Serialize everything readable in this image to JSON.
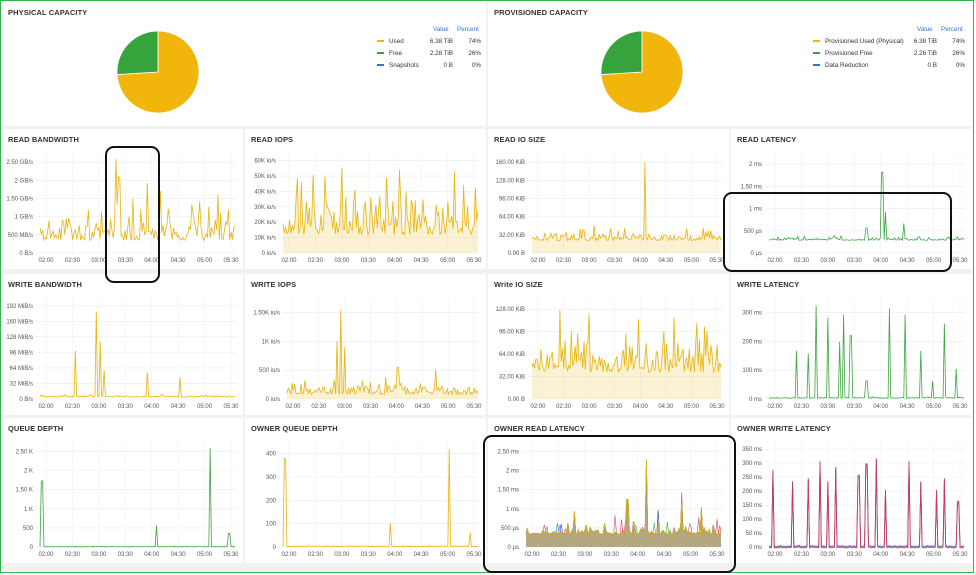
{
  "physical_capacity": {
    "title": "PHYSICAL CAPACITY",
    "legend_headers": {
      "value": "Value",
      "percent": "Percent"
    },
    "legend": [
      {
        "label": "Used",
        "value": "6.38 TiB",
        "percent": "74%",
        "color": "#f2b50c"
      },
      {
        "label": "Free",
        "value": "2.28 TiB",
        "percent": "26%",
        "color": "#37a33c"
      },
      {
        "label": "Snapshots",
        "value": "0 B",
        "percent": "0%",
        "color": "#3274d9"
      }
    ]
  },
  "provisioned_capacity": {
    "title": "PROVISIONED CAPACITY",
    "legend_headers": {
      "value": "Value",
      "percent": "Percent"
    },
    "legend": [
      {
        "label": "Provisioned Used (Physical)",
        "value": "6.38 TiB",
        "percent": "74%",
        "color": "#f2b50c"
      },
      {
        "label": "Provisioned Free",
        "value": "2.26 TiB",
        "percent": "26%",
        "color": "#37a33c"
      },
      {
        "label": "Data Reduction",
        "value": "0 B",
        "percent": "0%",
        "color": "#3274d9"
      }
    ]
  },
  "colors": {
    "yellow": "#e8b40c",
    "yellow_fill": "rgba(232,180,12,0.18)",
    "green": "#3fa543",
    "grid": "#ececec",
    "tick": "#555"
  },
  "chart_data": [
    {
      "type": "pie",
      "title": "PHYSICAL CAPACITY",
      "categories": [
        "Used",
        "Free",
        "Snapshots"
      ],
      "values": [
        74,
        26,
        0
      ]
    },
    {
      "type": "pie",
      "title": "PROVISIONED CAPACITY",
      "categories": [
        "Provisioned Used (Physical)",
        "Provisioned Free",
        "Data Reduction"
      ],
      "values": [
        74,
        26,
        0
      ]
    },
    {
      "type": "line",
      "title": "READ BANDWIDTH",
      "x_ticks": [
        "02:00",
        "02:30",
        "03:00",
        "03:30",
        "04:00",
        "04:30",
        "05:00",
        "05:30"
      ],
      "y_ticks": [
        "0 B/s",
        "500 MB/s",
        "1 GB/s",
        "1.50 GB/s",
        "2 GB/s",
        "2.50 GB/s"
      ],
      "ylim": [
        0,
        2.75
      ],
      "y_unit": "GB/s",
      "baseline": 0.35,
      "spread": 1.45,
      "spikes": [
        [
          0.39,
          2.6
        ],
        [
          0.41,
          2.05
        ],
        [
          0.55,
          1.9
        ],
        [
          0.62,
          1.7
        ]
      ],
      "color": "yellow",
      "fill": false,
      "highlighted": true
    },
    {
      "type": "line",
      "title": "READ IOPS",
      "x_ticks": [
        "02:00",
        "02:30",
        "03:00",
        "03:30",
        "04:00",
        "04:30",
        "05:00",
        "05:30"
      ],
      "y_ticks": [
        "0 io/s",
        "10K io/s",
        "20K io/s",
        "30K io/s",
        "40K io/s",
        "50K io/s",
        "60K io/s"
      ],
      "ylim": [
        0,
        66
      ],
      "y_unit": "K io/s",
      "baseline": 12,
      "spread": 38,
      "spikes": [
        [
          0.3,
          56
        ],
        [
          0.6,
          55
        ],
        [
          0.88,
          54
        ]
      ],
      "color": "yellow",
      "fill": true
    },
    {
      "type": "line",
      "title": "READ IO SIZE",
      "x_ticks": [
        "02:00",
        "02:30",
        "03:00",
        "03:30",
        "04:00",
        "04:30",
        "05:00",
        "05:30"
      ],
      "y_ticks": [
        "0.00 B",
        "32.00 KiB",
        "64.00 KiB",
        "96.00 KiB",
        "128.00 KiB",
        "160.00 KiB"
      ],
      "ylim": [
        0,
        176
      ],
      "y_unit": "KiB",
      "baseline": 22,
      "spread": 22,
      "spikes": [
        [
          0.6,
          160
        ]
      ],
      "color": "yellow",
      "fill": true
    },
    {
      "type": "line",
      "title": "READ LATENCY",
      "x_ticks": [
        "02:00",
        "02:30",
        "03:00",
        "03:30",
        "04:00",
        "04:30",
        "05:00",
        "05:30"
      ],
      "y_ticks": [
        "0 µs",
        "500 µs",
        "1 ms",
        "1.50 ms",
        "2 ms"
      ],
      "ylim": [
        0,
        2.2
      ],
      "y_unit": "ms",
      "baseline": 0.28,
      "spread": 0.1,
      "spikes": [
        [
          0.58,
          1.78
        ],
        [
          0.6,
          0.9
        ],
        [
          0.69,
          0.65
        ],
        [
          0.5,
          0.55
        ]
      ],
      "color": "green",
      "fill": false,
      "highlighted": true
    },
    {
      "type": "line",
      "title": "WRITE BANDWIDTH",
      "x_ticks": [
        "02:00",
        "02:30",
        "03:00",
        "03:30",
        "04:00",
        "04:30",
        "05:00",
        "05:30"
      ],
      "y_ticks": [
        "0 B/s",
        "32 MiB/s",
        "64 MiB/s",
        "96 MiB/s",
        "128 MiB/s",
        "160 MiB/s",
        "192 MiB/s"
      ],
      "ylim": [
        0,
        210
      ],
      "y_unit": "MiB/s",
      "baseline": 4,
      "spread": 6,
      "spikes": [
        [
          0.18,
          100
        ],
        [
          0.29,
          182
        ],
        [
          0.31,
          120
        ],
        [
          0.33,
          60
        ],
        [
          0.55,
          55
        ],
        [
          0.72,
          45
        ]
      ],
      "color": "yellow",
      "fill": false
    },
    {
      "type": "line",
      "title": "WRITE IOPS",
      "x_ticks": [
        "02:00",
        "02:30",
        "03:00",
        "03:30",
        "04:00",
        "04:30",
        "05:00",
        "05:30"
      ],
      "y_ticks": [
        "0 io/s",
        "500 io/s",
        "1K io/s",
        "1.50K io/s"
      ],
      "ylim": [
        0,
        1.75
      ],
      "y_unit": "K io/s",
      "baseline": 0.08,
      "spread": 0.25,
      "spikes": [
        [
          0.28,
          1.55
        ],
        [
          0.26,
          1.0
        ],
        [
          0.3,
          0.9
        ],
        [
          0.58,
          0.55
        ],
        [
          0.78,
          0.5
        ]
      ],
      "color": "yellow",
      "fill": true
    },
    {
      "type": "line",
      "title": "Write IO SIZE",
      "x_ticks": [
        "02:00",
        "02:30",
        "03:00",
        "03:30",
        "04:00",
        "04:30",
        "05:00",
        "05:30"
      ],
      "y_ticks": [
        "0.00 B",
        "32.00 KiB",
        "64.00 KiB",
        "96.00 KiB",
        "128.00 KiB"
      ],
      "ylim": [
        0,
        136
      ],
      "y_unit": "KiB",
      "baseline": 36,
      "spread": 62,
      "spikes": [
        [
          0.15,
          120
        ],
        [
          0.3,
          115
        ],
        [
          0.75,
          110
        ]
      ],
      "color": "yellow",
      "fill": true
    },
    {
      "type": "line",
      "title": "WRITE LATENCY",
      "x_ticks": [
        "02:00",
        "02:30",
        "03:00",
        "03:30",
        "04:00",
        "04:30",
        "05:00",
        "05:30"
      ],
      "y_ticks": [
        "0 ms",
        "100 ms",
        "200 ms",
        "300 ms"
      ],
      "ylim": [
        0,
        335
      ],
      "y_unit": "ms",
      "baseline": 3,
      "spread": 4,
      "spikes": [
        [
          0.14,
          160
        ],
        [
          0.2,
          150
        ],
        [
          0.24,
          310
        ],
        [
          0.3,
          270
        ],
        [
          0.36,
          190
        ],
        [
          0.38,
          280
        ],
        [
          0.42,
          210
        ],
        [
          0.5,
          60
        ],
        [
          0.62,
          300
        ],
        [
          0.7,
          280
        ],
        [
          0.78,
          160
        ],
        [
          0.84,
          60
        ],
        [
          0.9,
          250
        ],
        [
          0.96,
          100
        ]
      ],
      "color": "green",
      "fill": false
    },
    {
      "type": "line",
      "title": "QUEUE DEPTH",
      "x_ticks": [
        "02:00",
        "02:30",
        "03:00",
        "03:30",
        "04:00",
        "04:30",
        "05:00",
        "05:30"
      ],
      "y_ticks": [
        "0",
        "500",
        "1 K",
        "1.50 K",
        "2 K",
        "2.50 K"
      ],
      "ylim": [
        0,
        2.7
      ],
      "y_unit": "K",
      "baseline": 0.005,
      "spread": 0.01,
      "spikes": [
        [
          0.01,
          1.7
        ],
        [
          0.6,
          0.55
        ],
        [
          0.87,
          2.55
        ],
        [
          0.97,
          0.35
        ]
      ],
      "color": "green",
      "fill": false
    },
    {
      "type": "line",
      "title": "OWNER QUEUE DEPTH",
      "x_ticks": [
        "02:00",
        "02:30",
        "03:00",
        "03:30",
        "04:00",
        "04:30",
        "05:00",
        "05:30"
      ],
      "y_ticks": [
        "0",
        "100",
        "200",
        "300",
        "400"
      ],
      "ylim": [
        0,
        440
      ],
      "y_unit": "",
      "baseline": 2,
      "spread": 3,
      "spikes": [
        [
          0.01,
          370
        ],
        [
          0.55,
          100
        ],
        [
          0.85,
          410
        ],
        [
          0.96,
          60
        ]
      ],
      "color": "yellow",
      "fill": false
    },
    {
      "type": "area",
      "title": "OWNER READ LATENCY",
      "x_ticks": [
        "02:00",
        "02:30",
        "03:00",
        "03:30",
        "04:00",
        "04:30",
        "05:00",
        "05:30"
      ],
      "y_ticks": [
        "0 µs",
        "500 µs",
        "1 ms",
        "1.50 ms",
        "2 ms",
        "2.50 ms"
      ],
      "ylim": [
        0,
        2.65
      ],
      "y_unit": "ms",
      "baseline": 0.32,
      "spread": 0.25,
      "spikes": [
        [
          0.52,
          1.2
        ],
        [
          0.62,
          2.2
        ],
        [
          0.8,
          1.15
        ],
        [
          0.9,
          1.0
        ],
        [
          0.25,
          0.9
        ]
      ],
      "color": "multi",
      "fill": true,
      "highlighted": true
    },
    {
      "type": "line",
      "title": "OWNER WRITE LATENCY",
      "x_ticks": [
        "02:00",
        "02:30",
        "03:00",
        "03:30",
        "04:00",
        "04:30",
        "05:00",
        "05:30"
      ],
      "y_ticks": [
        "0 ms",
        "50 ms",
        "100 ms",
        "150 ms",
        "200 ms",
        "250 ms",
        "300 ms",
        "350 ms"
      ],
      "ylim": [
        0,
        365
      ],
      "y_unit": "ms",
      "baseline": 3,
      "spread": 4,
      "spikes": [
        [
          0.02,
          270
        ],
        [
          0.12,
          230
        ],
        [
          0.2,
          240
        ],
        [
          0.26,
          300
        ],
        [
          0.3,
          230
        ],
        [
          0.34,
          280
        ],
        [
          0.46,
          250
        ],
        [
          0.5,
          290
        ],
        [
          0.55,
          310
        ],
        [
          0.6,
          200
        ],
        [
          0.72,
          300
        ],
        [
          0.78,
          230
        ],
        [
          0.86,
          200
        ],
        [
          0.9,
          240
        ],
        [
          0.97,
          160
        ]
      ],
      "color": "multi",
      "fill": false
    }
  ]
}
